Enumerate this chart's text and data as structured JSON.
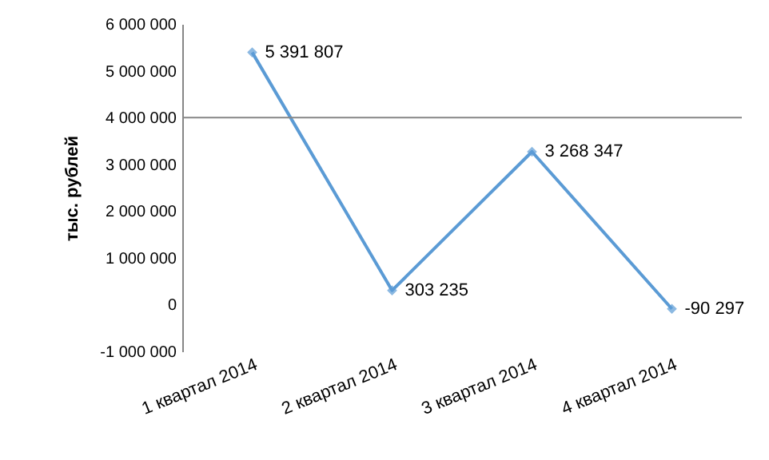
{
  "chart_data": {
    "type": "line",
    "ylabel": "тыс. рублей",
    "categories": [
      "1 квартал 2014",
      "2 квартал 2014",
      "3 квартал 2014",
      "4 квартал 2014"
    ],
    "series": [
      {
        "color": "#5b9bd5",
        "values": [
          5391807,
          303235,
          3268347,
          -90297
        ],
        "value_labels": [
          "5 391 807",
          "303 235",
          "3 268 347",
          "-90 297"
        ]
      }
    ],
    "ylim": [
      -1000000,
      6000000
    ],
    "yticks": [
      {
        "value": -1000000,
        "label": "-1 000 000"
      },
      {
        "value": 0,
        "label": "0"
      },
      {
        "value": 1000000,
        "label": "1 000 000"
      },
      {
        "value": 2000000,
        "label": "2 000 000"
      },
      {
        "value": 3000000,
        "label": "3 000 000"
      },
      {
        "value": 4000000,
        "label": "4 000 000"
      },
      {
        "value": 5000000,
        "label": "5 000 000"
      },
      {
        "value": 6000000,
        "label": "6 000 000"
      }
    ],
    "ref_lines": [
      {
        "axis": "y",
        "value": 4000000,
        "color": "#868686"
      }
    ],
    "marker": "diamond",
    "line_style": "solid"
  }
}
